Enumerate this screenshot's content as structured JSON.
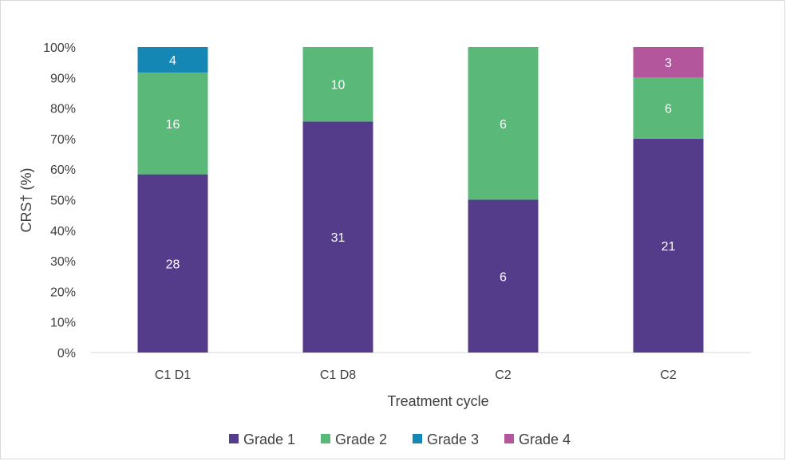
{
  "chart_data": {
    "type": "bar",
    "stacked": true,
    "percent": true,
    "categories": [
      "C1 D1",
      "C1 D8",
      "C2",
      "C2"
    ],
    "series": [
      {
        "name": "Grade 1",
        "color": "#553c8a",
        "values": [
          28,
          31,
          6,
          21
        ]
      },
      {
        "name": "Grade 2",
        "color": "#5ab878",
        "values": [
          16,
          10,
          6,
          6
        ]
      },
      {
        "name": "Grade 3",
        "color": "#1487b4",
        "values": [
          4,
          null,
          null,
          null
        ]
      },
      {
        "name": "Grade 4",
        "color": "#b3569b",
        "values": [
          null,
          null,
          null,
          3
        ]
      }
    ],
    "xlabel": "Treatment cycle",
    "ylabel": "CRS† (%)",
    "ylim": [
      0,
      100
    ],
    "yticks": [
      "0%",
      "10%",
      "20%",
      "30%",
      "40%",
      "50%",
      "60%",
      "70%",
      "80%",
      "90%",
      "100%"
    ],
    "legend_position": "bottom",
    "grid": false
  }
}
